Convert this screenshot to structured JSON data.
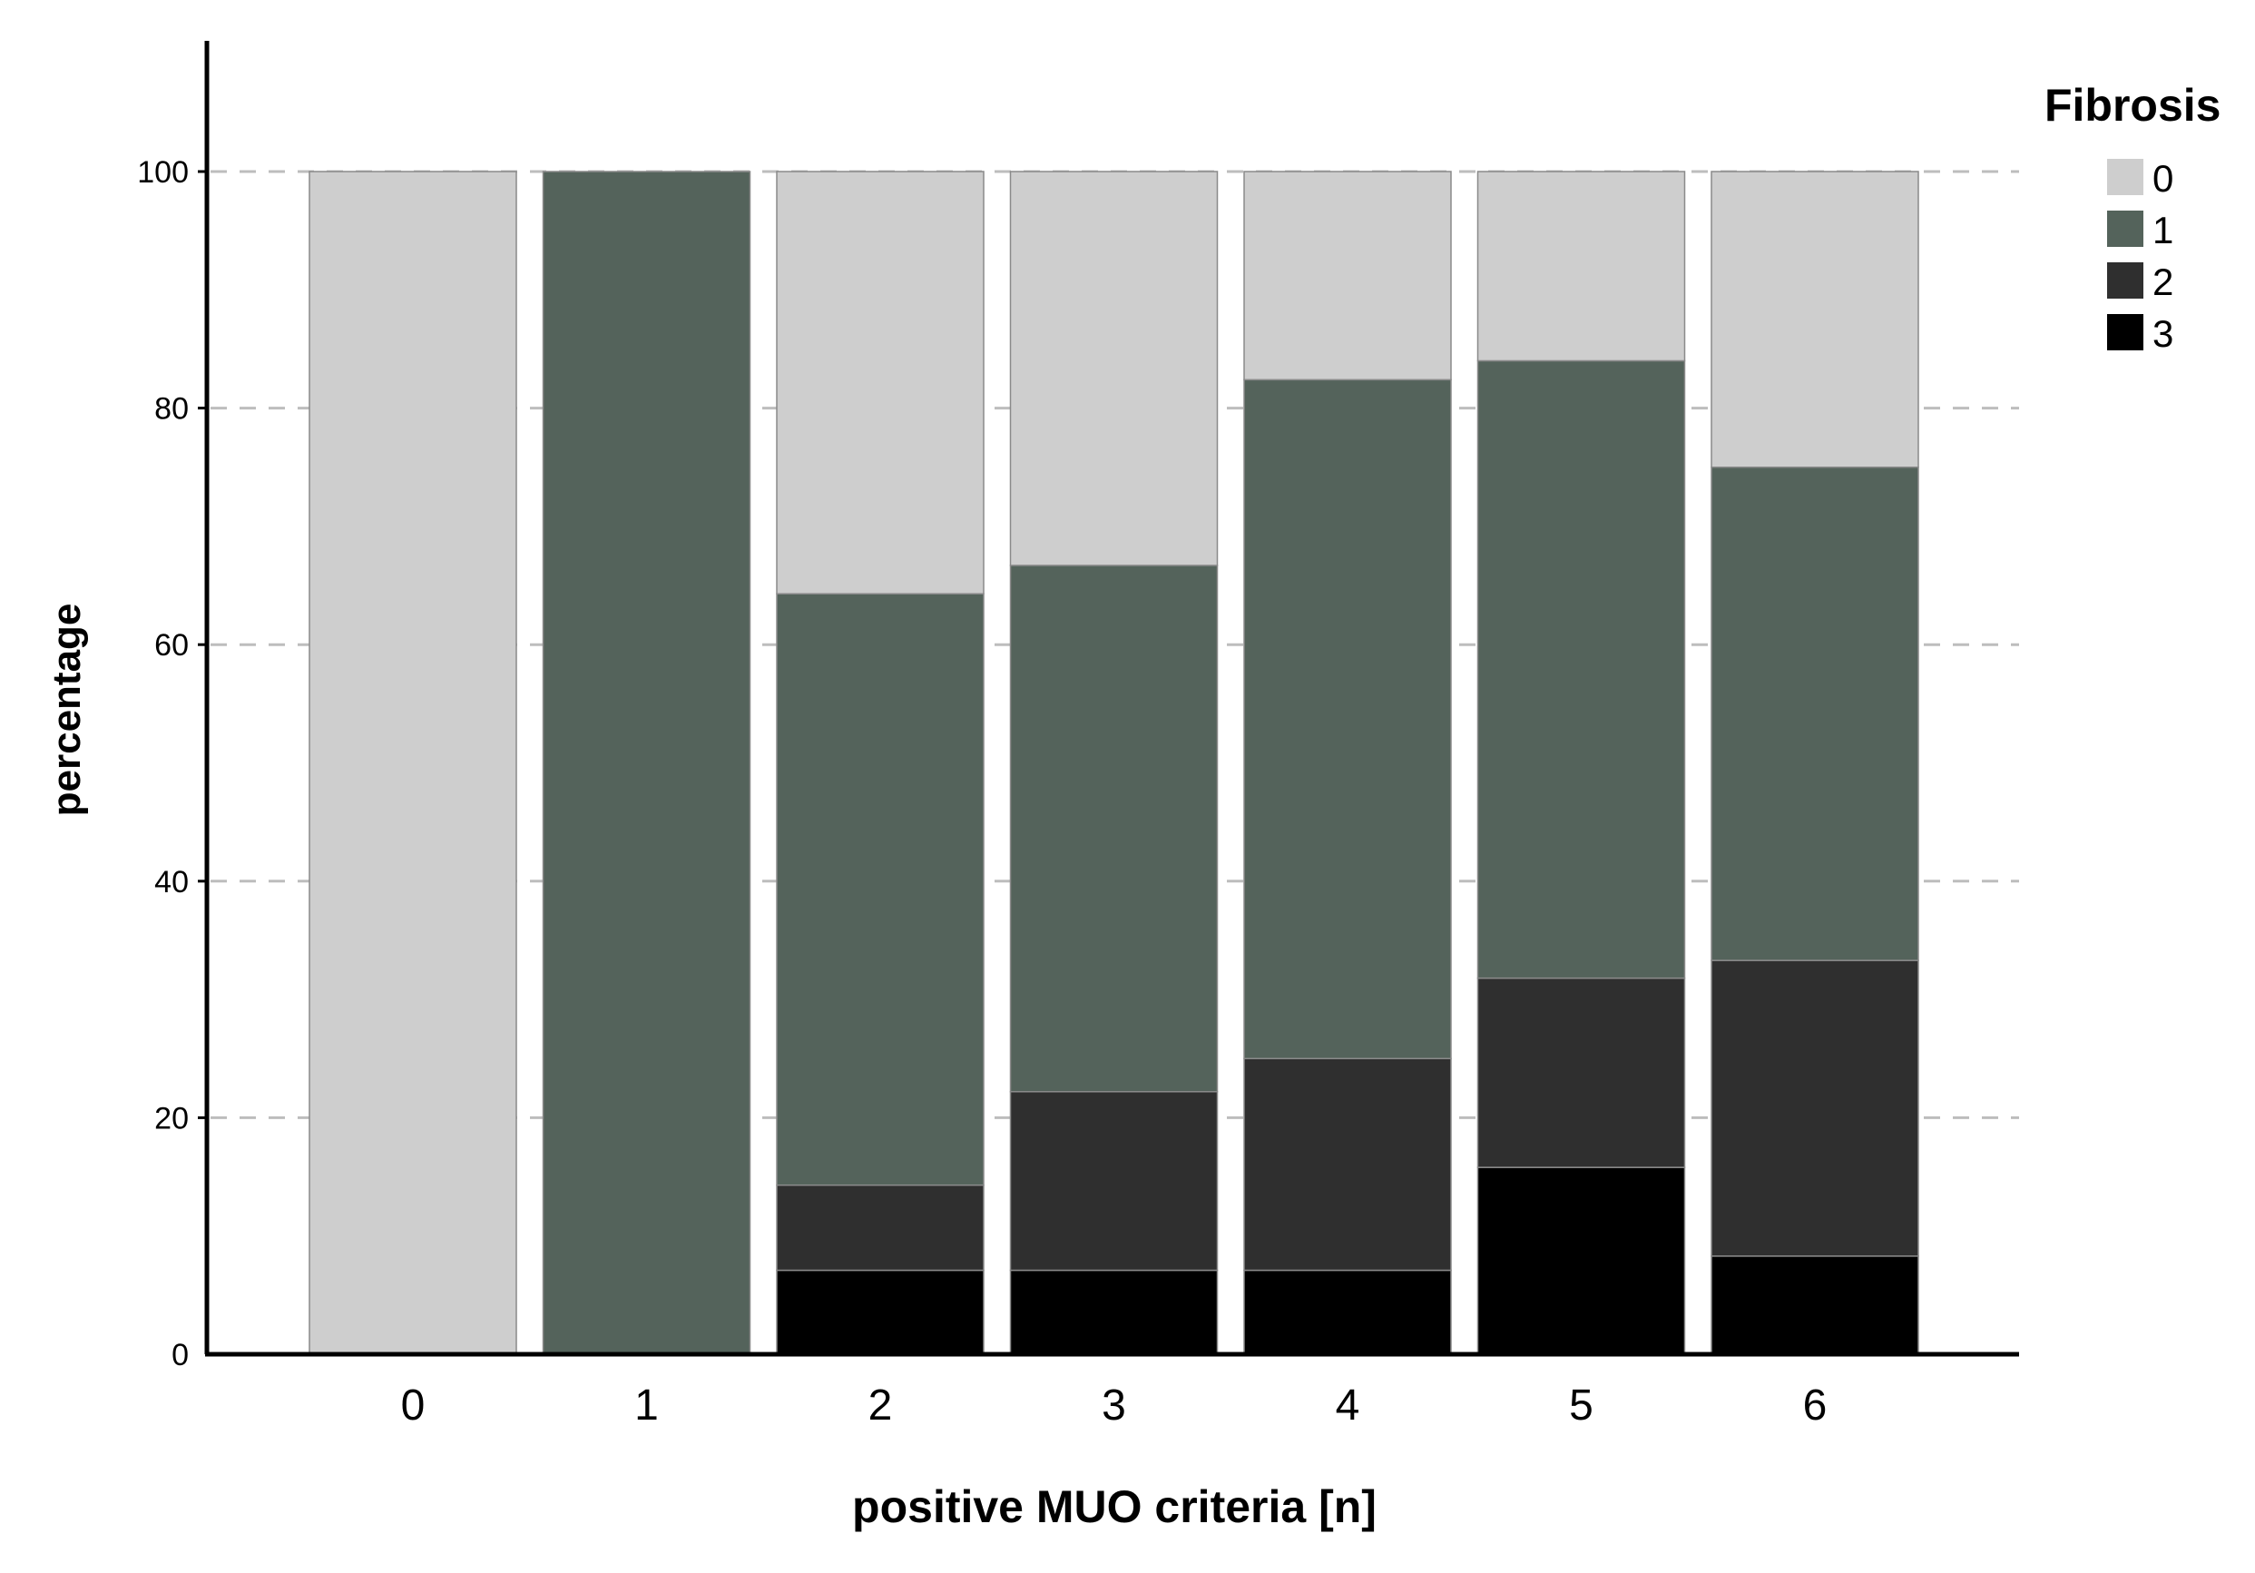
{
  "chart_data": {
    "type": "bar",
    "stacked": true,
    "xlabel": "positive MUO criteria [n]",
    "ylabel": "percentage",
    "ylim": [
      0,
      110
    ],
    "yticks": [
      0,
      20,
      40,
      60,
      80,
      100
    ],
    "grid": "horizontal dashed",
    "categories": [
      "0",
      "1",
      "2",
      "3",
      "4",
      "5",
      "6"
    ],
    "legend": {
      "title": "Fibrosis",
      "position": "top-right"
    },
    "series": [
      {
        "name": "3",
        "color": "#000000",
        "values": [
          0,
          0,
          7.1,
          7.1,
          7.1,
          15.8,
          8.3
        ]
      },
      {
        "name": "2",
        "color": "#2f2f2f",
        "values": [
          0,
          0,
          7.2,
          15.1,
          17.9,
          16.0,
          25.0
        ]
      },
      {
        "name": "1",
        "color": "#54635b",
        "values": [
          0,
          100,
          50.0,
          44.5,
          57.4,
          52.2,
          41.7
        ]
      },
      {
        "name": "0",
        "color": "#cecece",
        "values": [
          100,
          0,
          35.7,
          33.3,
          17.6,
          16.0,
          25.0
        ]
      }
    ]
  }
}
